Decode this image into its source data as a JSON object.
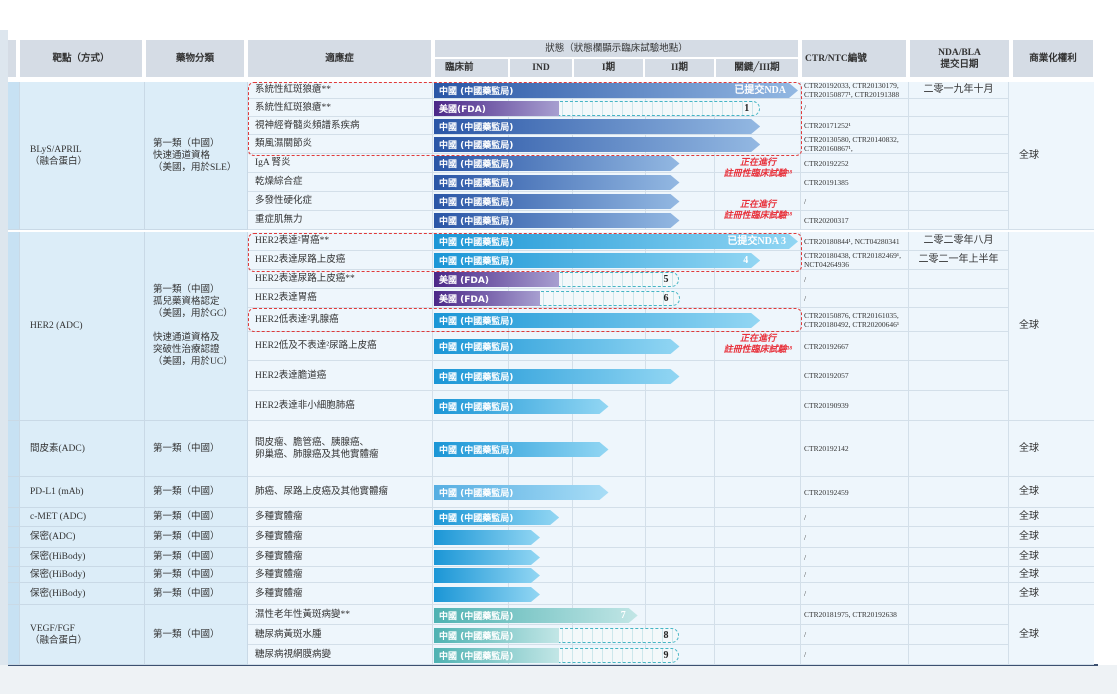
{
  "header": {
    "target": "靶點（方式）",
    "class": "藥物分類",
    "indication": "適應症",
    "status_title": "狀態（狀態欄顯示臨床試驗地點）",
    "phases": [
      "臨床前",
      "IND",
      "I期",
      "II期",
      "關鍵╱III期"
    ],
    "ctr": "CTR/NTC編號",
    "nda": "NDA/BLA\n提交日期",
    "commercial": "商業化權利"
  },
  "bar_colors": {
    "blys": [
      "#2a56a6",
      "#93b8e2"
    ],
    "her2": [
      "#1b96d6",
      "#92d6f3"
    ],
    "us": [
      "#4b2888",
      "#a79fd0"
    ],
    "light": [
      "#56aee2",
      "#a9ddf6"
    ],
    "vegf": [
      "#4fb2b2",
      "#c2e6e6"
    ]
  },
  "groups": [
    {
      "target": "BLyS/APRIL\n（融合蛋白）",
      "class": "第一類（中國）\n快速通道資格\n（美國，用於SLE）",
      "commercial": "全球",
      "rows": [
        {
          "indication": "系統性紅斑狼瘡**",
          "bar": {
            "label": "中國 (中國藥監局)",
            "color": "blys",
            "phase_end": 5.0,
            "end_label": "已提交NDA"
          },
          "ctr": "CTR20192033, CTR20130179,\nCTR20150877¹, CTR20191388",
          "nda": "二零一九年十月"
        },
        {
          "indication": "系統性紅斑狼瘡**",
          "bar": {
            "label": "美國(FDA)",
            "color": "us",
            "phase_end": 1.8,
            "planned_end": 4.55,
            "end_label": "1"
          },
          "ctr": "/",
          "nda": ""
        },
        {
          "indication": "視神經脊髓炎頻譜系疾病",
          "bar": {
            "label": "中國 (中國藥監局)",
            "color": "blys",
            "phase_end": 4.55
          },
          "ctr": "CTR20171252¹",
          "nda": ""
        },
        {
          "indication": "類風濕關節炎",
          "bar": {
            "label": "中國 (中國藥監局)",
            "color": "blys",
            "phase_end": 4.55
          },
          "ctr": "CTR20130580, CTR20140832,\nCTR20160867¹,",
          "nda": ""
        },
        {
          "indication": "IgA 腎炎",
          "bar": {
            "label": "中國 (中國藥監局)",
            "color": "blys",
            "phase_end": 3.5
          },
          "ctr": "CTR20192252",
          "nda": ""
        },
        {
          "indication": "乾燥綜合症",
          "bar": {
            "label": "中國 (中國藥監局)",
            "color": "blys",
            "phase_end": 3.5
          },
          "ctr": "CTR20191385",
          "nda": ""
        },
        {
          "indication": "多發性硬化症",
          "bar": {
            "label": "中國 (中國藥監局)",
            "color": "blys",
            "phase_end": 3.5
          },
          "ctr": "/",
          "nda": ""
        },
        {
          "indication": "重症肌無力",
          "bar": {
            "label": "中國 (中國藥監局)",
            "color": "blys",
            "phase_end": 3.5
          },
          "ctr": "CTR20200317",
          "nda": ""
        }
      ]
    },
    {
      "target": "HER2 (ADC)",
      "class": "第一類（中國）\n孤兒藥資格認定\n（美國，用於GC）\n\n快速通道資格及\n突破性治療認證\n（美國，用於UC）",
      "commercial": "全球",
      "rows": [
        {
          "indication": "HER2表達²胃癌**",
          "bar": {
            "label": "中國 (中國藥監局)",
            "color": "her2",
            "phase_end": 5.0,
            "end_label": "已提交NDA 3"
          },
          "ctr": "CTR20180844¹, NCT04280341",
          "nda": "二零二零年八月"
        },
        {
          "indication": "HER2表達尿路上皮癌",
          "bar": {
            "label": "中國 (中國藥監局)",
            "color": "her2",
            "phase_end": 4.55,
            "end_label": "4"
          },
          "ctr": "CTR20180438, CTR20182469¹,\nNCT04264936",
          "nda": "二零二一年上半年"
        },
        {
          "indication": "HER2表達尿路上皮癌**",
          "bar": {
            "label": "美國 (FDA)",
            "color": "us",
            "phase_end": 1.8,
            "planned_end": 3.5,
            "end_label": "5"
          },
          "ctr": "/",
          "nda": ""
        },
        {
          "indication": "HER2表達胃癌",
          "bar": {
            "label": "美國 (FDA)",
            "color": "us",
            "phase_end": 1.5,
            "planned_end": 3.5,
            "end_label": "6"
          },
          "ctr": "/",
          "nda": ""
        },
        {
          "indication": "HER2低表達²乳腺癌",
          "bar": {
            "label": "中國 (中國藥監局)",
            "color": "her2",
            "phase_end": 4.55
          },
          "ctr": "CTR20150876, CTR20161035,\nCTR20180492, CTR20200646¹",
          "nda": ""
        },
        {
          "indication": "HER2低及不表達²尿路上皮癌",
          "bar": {
            "label": "中國 (中國藥監局)",
            "color": "her2",
            "phase_end": 3.5
          },
          "ctr": "CTR20192667",
          "nda": ""
        },
        {
          "indication": "HER2表達膽道癌",
          "bar": {
            "label": "中國 (中國藥監局)",
            "color": "her2",
            "phase_end": 3.5
          },
          "ctr": "CTR20192057",
          "nda": ""
        },
        {
          "indication": "HER2表達非小細胞肺癌",
          "bar": {
            "label": "中國 (中國藥監局)",
            "color": "her2",
            "phase_end": 2.5
          },
          "ctr": "CTR20190939",
          "nda": ""
        }
      ]
    },
    {
      "target": "間皮素(ADC)",
      "class": "第一類（中國）",
      "commercial": "全球",
      "rows": [
        {
          "indication": "間皮瘤、膽管癌、胰腺癌、\n卵巢癌、肺腺癌及其他實體瘤",
          "bar": {
            "label": "中國 (中國藥監局)",
            "color": "her2",
            "phase_end": 2.5
          },
          "ctr": "CTR20192142",
          "nda": ""
        }
      ]
    },
    {
      "target": "PD-L1 (mAb)",
      "class": "第一類（中國）",
      "commercial": "全球",
      "rows": [
        {
          "indication": "肺癌、尿路上皮癌及其他實體瘤",
          "bar": {
            "label": "中國 (中國藥監局)",
            "color": "light",
            "phase_end": 2.5
          },
          "ctr": "CTR20192459",
          "nda": ""
        }
      ]
    },
    {
      "target": "c-MET (ADC)",
      "class": "第一類（中國）",
      "commercial": "全球",
      "rows": [
        {
          "indication": "多種實體瘤",
          "bar": {
            "label": "中國 (中國藥監局)",
            "color": "her2",
            "phase_end": 1.8
          },
          "ctr": "/",
          "nda": ""
        }
      ]
    },
    {
      "target": "保密(ADC)",
      "class": "第一類（中國）",
      "commercial": "全球",
      "rows": [
        {
          "indication": "多種實體瘤",
          "bar": {
            "label": "",
            "color": "her2",
            "phase_end": 1.5
          },
          "ctr": "/",
          "nda": ""
        }
      ]
    },
    {
      "target": "保密(HiBody)",
      "class": "第一類（中國）",
      "commercial": "全球",
      "rows": [
        {
          "indication": "多種實體瘤",
          "bar": {
            "label": "",
            "color": "her2",
            "phase_end": 1.5
          },
          "ctr": "/",
          "nda": ""
        }
      ]
    },
    {
      "target": "保密(HiBody)",
      "class": "第一類（中國）",
      "commercial": "全球",
      "rows": [
        {
          "indication": "多種實體瘤",
          "bar": {
            "label": "",
            "color": "her2",
            "phase_end": 1.5
          },
          "ctr": "/",
          "nda": ""
        }
      ]
    },
    {
      "target": "保密(HiBody)",
      "class": "第一類（中國）",
      "commercial": "全球",
      "rows": [
        {
          "indication": "多種實體瘤",
          "bar": {
            "label": "",
            "color": "her2",
            "phase_end": 1.5
          },
          "ctr": "/",
          "nda": ""
        }
      ]
    },
    {
      "target": "VEGF/FGF\n（融合蛋白）",
      "class": "第一類（中國）",
      "commercial": "全球",
      "rows": [
        {
          "indication": "濕性老年性黃斑病變**",
          "bar": {
            "label": "中國 (中國藥監局)",
            "color": "vegf",
            "phase_end": 2.9,
            "end_label": "7"
          },
          "ctr": "CTR20181975, CTR20192638",
          "nda": ""
        },
        {
          "indication": "糖尿病黃斑水腫",
          "bar": {
            "label": "中國 (中國藥監局)",
            "color": "vegf",
            "phase_end": 1.8,
            "planned_end": 3.5,
            "end_label": "8"
          },
          "ctr": "/",
          "nda": ""
        },
        {
          "indication": "糖尿病視網膜病變",
          "bar": {
            "label": "中國 (中國藥監局)",
            "color": "vegf",
            "phase_end": 1.8,
            "planned_end": 3.5,
            "end_label": "9"
          },
          "ctr": "/",
          "nda": ""
        }
      ]
    }
  ],
  "notes": [
    {
      "text": "正在進行\n註冊性臨床試驗¹⁸"
    },
    {
      "text": "正在進行\n註冊性臨床試驗¹⁸"
    },
    {
      "text": "正在進行\n註冊性臨床試驗¹⁸"
    }
  ]
}
